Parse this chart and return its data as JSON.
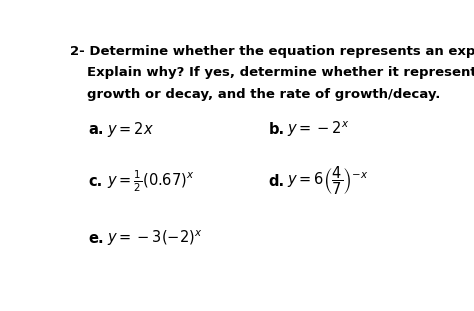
{
  "background_color": "#ffffff",
  "title_number": "2- ",
  "title_text_line1": "Determine whether the equation represents an exponential function.",
  "title_text_line2": "Explain why? If yes, determine whether it represents exponential",
  "title_text_line3": "growth or decay, and the rate of growth/decay.",
  "font_size_title": 9.5,
  "font_size_eq": 10.5,
  "font_size_label": 10.5
}
